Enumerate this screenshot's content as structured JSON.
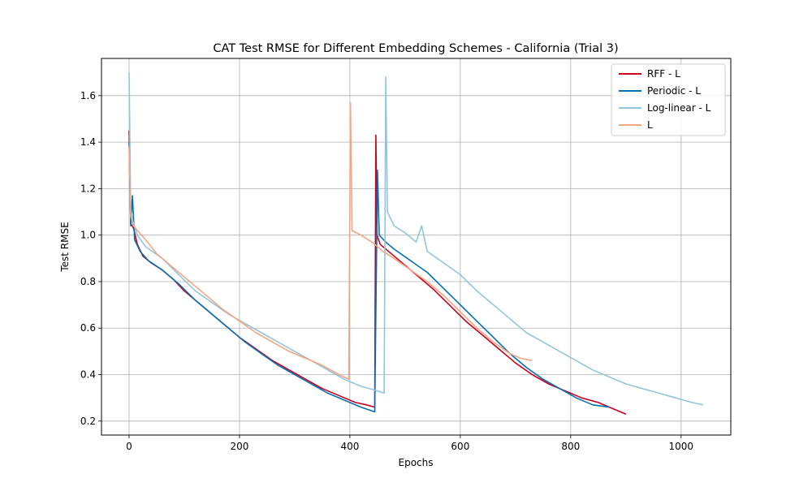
{
  "chart_data": {
    "type": "line",
    "title": "CAT Test RMSE for Different Embedding Schemes - California (Trial 3)",
    "xlabel": "Epochs",
    "ylabel": "Test RMSE",
    "xlim": [
      -50,
      1090
    ],
    "ylim": [
      0.14,
      1.76
    ],
    "xticks": [
      0,
      200,
      400,
      600,
      800,
      1000
    ],
    "yticks": [
      0.2,
      0.4,
      0.6,
      0.8,
      1.0,
      1.2,
      1.4,
      1.6
    ],
    "grid": true,
    "legend_position": "top-right",
    "series": [
      {
        "name": "RFF - L",
        "color": "#ca0020",
        "points": [
          [
            0,
            1.45
          ],
          [
            3,
            1.05
          ],
          [
            8,
            1.03
          ],
          [
            15,
            0.96
          ],
          [
            25,
            0.91
          ],
          [
            40,
            0.88
          ],
          [
            60,
            0.85
          ],
          [
            80,
            0.81
          ],
          [
            100,
            0.76
          ],
          [
            120,
            0.72
          ],
          [
            140,
            0.68
          ],
          [
            160,
            0.64
          ],
          [
            180,
            0.6
          ],
          [
            200,
            0.56
          ],
          [
            230,
            0.51
          ],
          [
            260,
            0.46
          ],
          [
            290,
            0.42
          ],
          [
            320,
            0.38
          ],
          [
            350,
            0.34
          ],
          [
            380,
            0.31
          ],
          [
            410,
            0.28
          ],
          [
            430,
            0.27
          ],
          [
            445,
            0.26
          ],
          [
            447,
            1.43
          ],
          [
            449,
            1.0
          ],
          [
            455,
            0.96
          ],
          [
            470,
            0.93
          ],
          [
            490,
            0.89
          ],
          [
            520,
            0.83
          ],
          [
            550,
            0.77
          ],
          [
            580,
            0.7
          ],
          [
            610,
            0.63
          ],
          [
            640,
            0.57
          ],
          [
            670,
            0.51
          ],
          [
            700,
            0.45
          ],
          [
            730,
            0.4
          ],
          [
            760,
            0.36
          ],
          [
            790,
            0.33
          ],
          [
            820,
            0.3
          ],
          [
            850,
            0.28
          ],
          [
            880,
            0.25
          ],
          [
            900,
            0.23
          ]
        ]
      },
      {
        "name": "Periodic - L",
        "color": "#0571b0",
        "points": [
          [
            0,
            1.4
          ],
          [
            3,
            1.04
          ],
          [
            6,
            1.17
          ],
          [
            10,
            0.98
          ],
          [
            20,
            0.93
          ],
          [
            35,
            0.89
          ],
          [
            60,
            0.85
          ],
          [
            90,
            0.79
          ],
          [
            120,
            0.72
          ],
          [
            150,
            0.66
          ],
          [
            180,
            0.6
          ],
          [
            210,
            0.54
          ],
          [
            240,
            0.49
          ],
          [
            270,
            0.44
          ],
          [
            300,
            0.4
          ],
          [
            330,
            0.36
          ],
          [
            360,
            0.32
          ],
          [
            390,
            0.29
          ],
          [
            420,
            0.26
          ],
          [
            445,
            0.24
          ],
          [
            450,
            1.28
          ],
          [
            453,
            1.0
          ],
          [
            465,
            0.97
          ],
          [
            480,
            0.94
          ],
          [
            510,
            0.89
          ],
          [
            540,
            0.84
          ],
          [
            570,
            0.77
          ],
          [
            600,
            0.7
          ],
          [
            630,
            0.63
          ],
          [
            660,
            0.56
          ],
          [
            690,
            0.49
          ],
          [
            720,
            0.43
          ],
          [
            750,
            0.38
          ],
          [
            780,
            0.34
          ],
          [
            810,
            0.3
          ],
          [
            840,
            0.27
          ],
          [
            870,
            0.26
          ]
        ]
      },
      {
        "name": "Log-linear - L",
        "color": "#92c5de",
        "points": [
          [
            0,
            1.7
          ],
          [
            3,
            1.1
          ],
          [
            8,
            1.05
          ],
          [
            15,
            1.0
          ],
          [
            30,
            0.95
          ],
          [
            60,
            0.9
          ],
          [
            90,
            0.83
          ],
          [
            120,
            0.76
          ],
          [
            150,
            0.71
          ],
          [
            180,
            0.66
          ],
          [
            210,
            0.62
          ],
          [
            240,
            0.58
          ],
          [
            270,
            0.54
          ],
          [
            300,
            0.5
          ],
          [
            330,
            0.46
          ],
          [
            360,
            0.42
          ],
          [
            390,
            0.38
          ],
          [
            420,
            0.35
          ],
          [
            450,
            0.33
          ],
          [
            462,
            0.32
          ],
          [
            465,
            1.68
          ],
          [
            468,
            1.1
          ],
          [
            480,
            1.04
          ],
          [
            500,
            1.01
          ],
          [
            520,
            0.97
          ],
          [
            530,
            1.04
          ],
          [
            540,
            0.93
          ],
          [
            570,
            0.88
          ],
          [
            600,
            0.83
          ],
          [
            630,
            0.76
          ],
          [
            660,
            0.7
          ],
          [
            690,
            0.64
          ],
          [
            720,
            0.58
          ],
          [
            750,
            0.54
          ],
          [
            780,
            0.5
          ],
          [
            810,
            0.46
          ],
          [
            840,
            0.42
          ],
          [
            870,
            0.39
          ],
          [
            900,
            0.36
          ],
          [
            930,
            0.34
          ],
          [
            960,
            0.32
          ],
          [
            990,
            0.3
          ],
          [
            1020,
            0.28
          ],
          [
            1040,
            0.27
          ]
        ]
      },
      {
        "name": "L",
        "color": "#f4a582",
        "points": [
          [
            0,
            1.38
          ],
          [
            3,
            1.08
          ],
          [
            8,
            1.04
          ],
          [
            15,
            1.02
          ],
          [
            30,
            0.98
          ],
          [
            50,
            0.92
          ],
          [
            80,
            0.86
          ],
          [
            110,
            0.8
          ],
          [
            140,
            0.74
          ],
          [
            170,
            0.68
          ],
          [
            200,
            0.63
          ],
          [
            230,
            0.58
          ],
          [
            260,
            0.54
          ],
          [
            290,
            0.5
          ],
          [
            320,
            0.47
          ],
          [
            350,
            0.44
          ],
          [
            380,
            0.4
          ],
          [
            398,
            0.38
          ],
          [
            401,
            1.57
          ],
          [
            404,
            1.02
          ],
          [
            420,
            1.0
          ],
          [
            440,
            0.97
          ],
          [
            460,
            0.93
          ],
          [
            480,
            0.9
          ],
          [
            510,
            0.85
          ],
          [
            540,
            0.8
          ],
          [
            570,
            0.74
          ],
          [
            600,
            0.67
          ],
          [
            630,
            0.6
          ],
          [
            660,
            0.54
          ],
          [
            690,
            0.49
          ],
          [
            710,
            0.47
          ],
          [
            730,
            0.46
          ]
        ]
      }
    ]
  }
}
